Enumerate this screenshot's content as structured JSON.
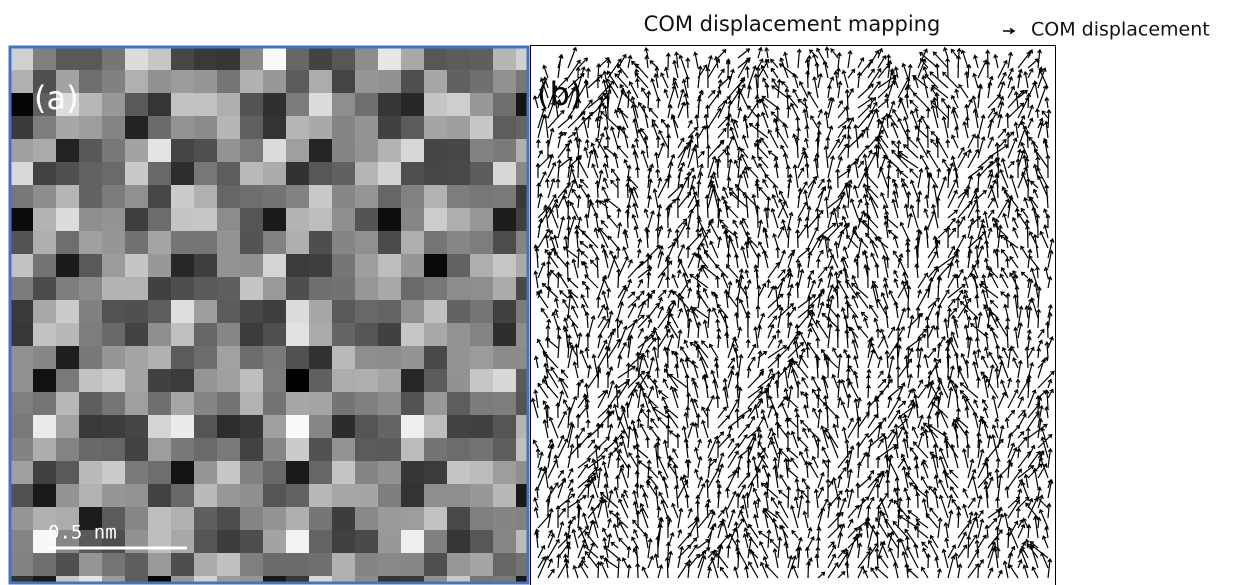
{
  "title": "COM displacement mapping",
  "legend": {
    "label": "COM displacement"
  },
  "panels": [
    {
      "label": "(a)",
      "scale_bar": "0.5 nm"
    },
    {
      "label": "(b)"
    }
  ]
}
